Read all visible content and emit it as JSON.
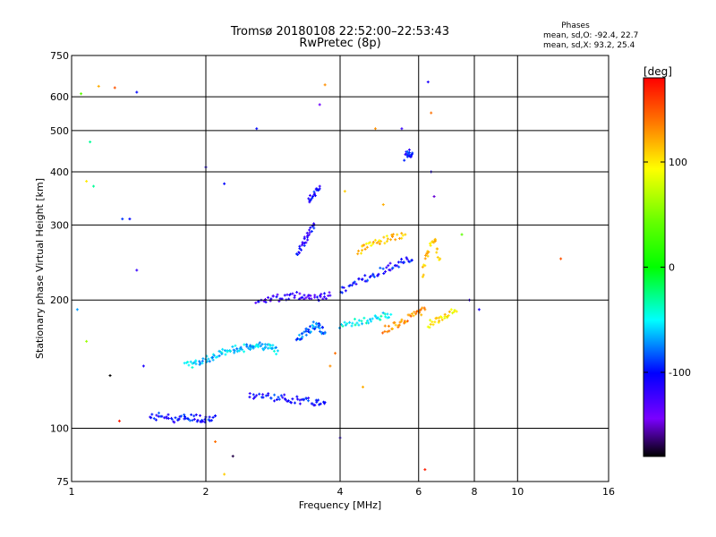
{
  "chart_data": {
    "type": "scatter",
    "title": "Tromsø 20180108 22:52:00–22:53:43",
    "subtitle": "RwPretec (8p)",
    "xlabel": "Frequency [MHz]",
    "ylabel": "Stationary phase Virtual Height [km]",
    "x_scale": "log",
    "y_scale": "log",
    "xlim": [
      1,
      16
    ],
    "ylim": [
      75,
      750
    ],
    "grid": true,
    "x_ticks": [
      1,
      2,
      4,
      6,
      8,
      10,
      16
    ],
    "x_tick_labels": [
      "1",
      "2",
      "4",
      "6",
      "8",
      "10",
      "16"
    ],
    "y_ticks": [
      75,
      100,
      200,
      300,
      400,
      500,
      600,
      750
    ],
    "y_tick_labels": [
      "75",
      "100",
      "200",
      "300",
      "400",
      "500",
      "600",
      "750"
    ],
    "stats": {
      "heading": "Phases",
      "line_o": "mean, sd,O: -92.4, 22.7",
      "line_x": "mean, sd,X:  93.2, 25.4"
    },
    "colorbar": {
      "label": "[deg]",
      "min": -180,
      "max": 180,
      "ticks": [
        100,
        0,
        -100
      ],
      "tick_labels": [
        "100",
        "0",
        "-100"
      ]
    },
    "traces": [
      {
        "x": [
          1.5,
          1.6,
          1.7,
          1.8,
          1.9,
          2.0,
          2.1
        ],
        "y": [
          106,
          107,
          105,
          106,
          106,
          105,
          107
        ],
        "phase": -100
      },
      {
        "x": [
          1.8,
          1.9,
          2.0,
          2.1,
          2.2,
          2.3,
          2.4,
          2.5,
          2.6,
          2.7,
          2.8,
          2.9
        ],
        "y": [
          140,
          142,
          145,
          148,
          151,
          153,
          154,
          155,
          157,
          156,
          155,
          152
        ],
        "phase": -60
      },
      {
        "x": [
          2.5,
          2.7,
          2.9,
          3.1,
          3.3,
          3.5,
          3.7
        ],
        "y": [
          120,
          119,
          118,
          117,
          116,
          115,
          115
        ],
        "phase": -100
      },
      {
        "x": [
          2.6,
          2.8,
          3.0,
          3.2,
          3.4,
          3.6,
          3.8
        ],
        "y": [
          200,
          202,
          203,
          205,
          204,
          203,
          205
        ],
        "phase": -120
      },
      {
        "x": [
          3.2,
          3.3,
          3.4,
          3.5,
          3.6,
          3.7
        ],
        "y": [
          160,
          165,
          170,
          175,
          172,
          168
        ],
        "phase": -80
      },
      {
        "x": [
          3.2,
          3.3,
          3.4,
          3.5
        ],
        "y": [
          255,
          270,
          285,
          300
        ],
        "phase": -110
      },
      {
        "x": [
          3.4,
          3.5,
          3.6
        ],
        "y": [
          340,
          355,
          365
        ],
        "phase": -105
      },
      {
        "x": [
          4.0,
          4.3,
          4.6,
          4.9,
          5.2,
          5.5,
          5.8
        ],
        "y": [
          210,
          218,
          226,
          233,
          240,
          245,
          248
        ],
        "phase": -100
      },
      {
        "x": [
          4.0,
          4.3,
          4.6,
          4.9,
          5.2
        ],
        "y": [
          175,
          177,
          179,
          182,
          185
        ],
        "phase": -50
      },
      {
        "x": [
          5.0,
          5.3,
          5.6,
          5.9,
          6.2
        ],
        "y": [
          170,
          175,
          180,
          185,
          190
        ],
        "phase": 130
      },
      {
        "x": [
          4.4,
          4.6,
          4.9,
          5.2,
          5.6
        ],
        "y": [
          260,
          270,
          275,
          280,
          285
        ],
        "phase": 110
      },
      {
        "x": [
          5.6,
          5.7,
          5.8
        ],
        "y": [
          430,
          445,
          440
        ],
        "phase": -100
      },
      {
        "x": [
          6.1,
          6.3,
          6.5,
          6.7
        ],
        "y": [
          230,
          260,
          280,
          250
        ],
        "phase": 110
      },
      {
        "x": [
          6.3,
          6.6,
          6.9,
          7.3
        ],
        "y": [
          175,
          180,
          185,
          188
        ],
        "phase": 100
      }
    ],
    "scatter": [
      {
        "x": 1.05,
        "y": 610,
        "phase": 40
      },
      {
        "x": 1.15,
        "y": 635,
        "phase": 120
      },
      {
        "x": 1.25,
        "y": 630,
        "phase": 150
      },
      {
        "x": 1.4,
        "y": 615,
        "phase": -100
      },
      {
        "x": 1.1,
        "y": 470,
        "phase": -30
      },
      {
        "x": 1.08,
        "y": 380,
        "phase": 100
      },
      {
        "x": 1.12,
        "y": 370,
        "phase": -30
      },
      {
        "x": 1.3,
        "y": 310,
        "phase": -90
      },
      {
        "x": 1.35,
        "y": 310,
        "phase": -100
      },
      {
        "x": 1.4,
        "y": 235,
        "phase": -120
      },
      {
        "x": 1.03,
        "y": 190,
        "phase": -70
      },
      {
        "x": 1.08,
        "y": 160,
        "phase": 60
      },
      {
        "x": 1.22,
        "y": 133,
        "phase": -180
      },
      {
        "x": 1.28,
        "y": 104,
        "phase": 170
      },
      {
        "x": 1.45,
        "y": 140,
        "phase": -110
      },
      {
        "x": 2.0,
        "y": 410,
        "phase": -110
      },
      {
        "x": 2.2,
        "y": 375,
        "phase": -100
      },
      {
        "x": 2.6,
        "y": 505,
        "phase": -100
      },
      {
        "x": 3.6,
        "y": 575,
        "phase": -140
      },
      {
        "x": 3.7,
        "y": 640,
        "phase": 130
      },
      {
        "x": 2.1,
        "y": 93,
        "phase": 140
      },
      {
        "x": 2.2,
        "y": 78,
        "phase": 110
      },
      {
        "x": 2.3,
        "y": 86,
        "phase": -170
      },
      {
        "x": 4.0,
        "y": 95,
        "phase": -120
      },
      {
        "x": 4.8,
        "y": 505,
        "phase": 130
      },
      {
        "x": 5.5,
        "y": 505,
        "phase": -120
      },
      {
        "x": 6.3,
        "y": 650,
        "phase": -110
      },
      {
        "x": 6.4,
        "y": 550,
        "phase": 140
      },
      {
        "x": 6.2,
        "y": 80,
        "phase": 170
      },
      {
        "x": 7.5,
        "y": 285,
        "phase": 40
      },
      {
        "x": 7.8,
        "y": 200,
        "phase": -120
      },
      {
        "x": 8.2,
        "y": 190,
        "phase": -110
      },
      {
        "x": 12.5,
        "y": 250,
        "phase": 150
      },
      {
        "x": 6.5,
        "y": 350,
        "phase": -150
      },
      {
        "x": 6.4,
        "y": 400,
        "phase": -110
      },
      {
        "x": 5.0,
        "y": 335,
        "phase": 120
      },
      {
        "x": 4.1,
        "y": 360,
        "phase": 110
      },
      {
        "x": 3.9,
        "y": 150,
        "phase": 140
      },
      {
        "x": 3.8,
        "y": 140,
        "phase": 130
      },
      {
        "x": 4.5,
        "y": 125,
        "phase": 120
      }
    ]
  }
}
